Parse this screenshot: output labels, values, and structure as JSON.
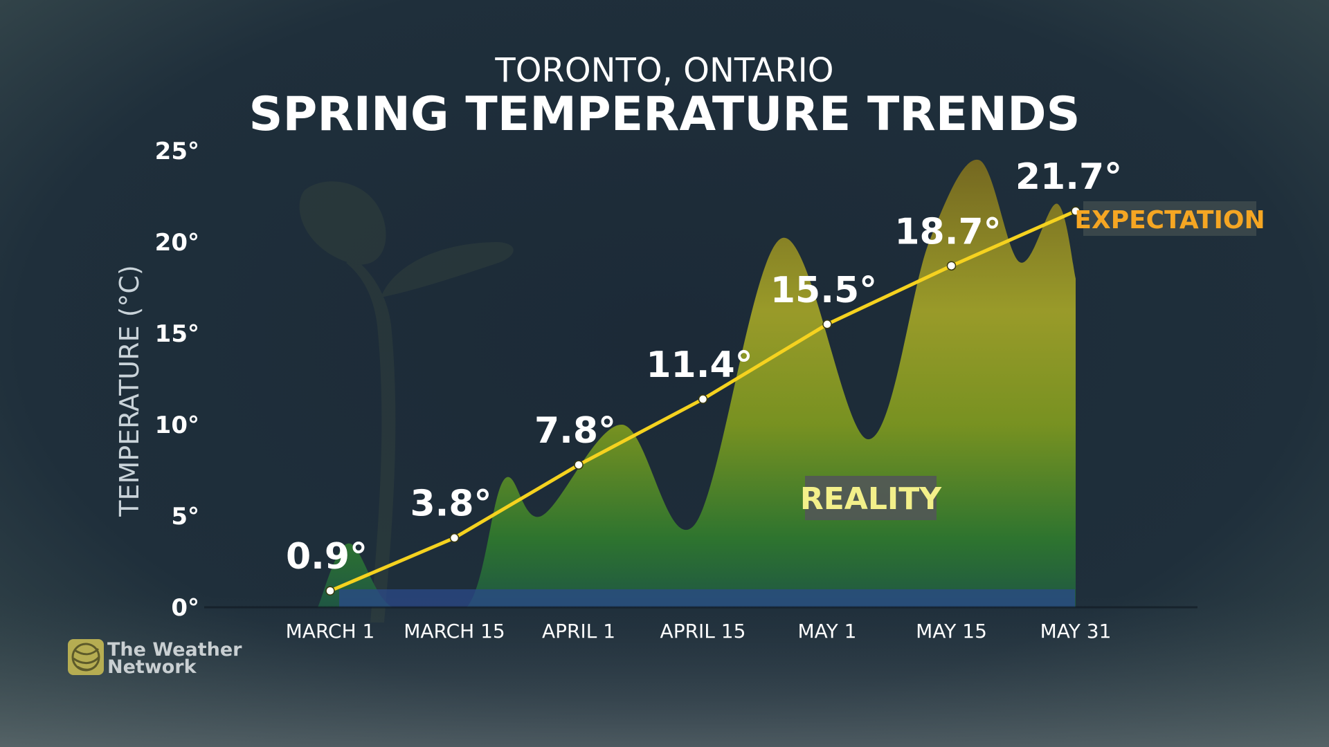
{
  "header": {
    "location": "TORONTO, ONTARIO",
    "title": "SPRING TEMPERATURE TRENDS"
  },
  "brand": {
    "line1": "The Weather",
    "line2": "Network",
    "logo_icon": "weather-network-globe-icon"
  },
  "colors": {
    "expectation_line": "#f5d21f",
    "expectation_label": "#f5a623",
    "reality_label": "#f3f08a",
    "reality_fill_top": "#8a8a1e",
    "reality_fill_bottom": "#1d5c3c",
    "baseline_band": "#2b4a8a"
  },
  "chart_data": {
    "type": "area",
    "title": "SPRING TEMPERATURE TRENDS",
    "subtitle": "TORONTO, ONTARIO",
    "ylabel": "TEMPERATURE (°C)",
    "xlabel": "",
    "ylim": [
      0,
      25
    ],
    "yticks": [
      0,
      5,
      10,
      15,
      20,
      25
    ],
    "ytick_labels": [
      "0°",
      "5°",
      "10°",
      "15°",
      "20°",
      "25°"
    ],
    "x": [
      "MARCH 1",
      "MARCH 15",
      "APRIL 1",
      "APRIL 15",
      "MAY 1",
      "MAY 15",
      "MAY 31"
    ],
    "grid": false,
    "series": [
      {
        "name": "EXPECTATION",
        "type": "line",
        "values": [
          0.9,
          3.8,
          7.8,
          11.4,
          15.5,
          18.7,
          21.7
        ],
        "labels": [
          "0.9°",
          "3.8°",
          "7.8°",
          "11.4°",
          "15.5°",
          "18.7°",
          "21.7°"
        ]
      },
      {
        "name": "REALITY",
        "type": "area",
        "points": [
          {
            "x": -0.1,
            "y": 0
          },
          {
            "x": 0.15,
            "y": 3.5
          },
          {
            "x": 0.5,
            "y": 0
          },
          {
            "x": 1.1,
            "y": 0
          },
          {
            "x": 1.4,
            "y": 7.0
          },
          {
            "x": 1.7,
            "y": 5.0
          },
          {
            "x": 2.35,
            "y": 10.0
          },
          {
            "x": 2.93,
            "y": 4.5
          },
          {
            "x": 3.63,
            "y": 20.2
          },
          {
            "x": 4.33,
            "y": 9.2
          },
          {
            "x": 4.82,
            "y": 20.0
          },
          {
            "x": 5.22,
            "y": 24.5
          },
          {
            "x": 5.55,
            "y": 18.9
          },
          {
            "x": 5.85,
            "y": 22.1
          },
          {
            "x": 6.0,
            "y": 18.0
          }
        ]
      }
    ],
    "annotations": [
      {
        "text": "EXPECTATION"
      },
      {
        "text": "REALITY"
      }
    ]
  }
}
